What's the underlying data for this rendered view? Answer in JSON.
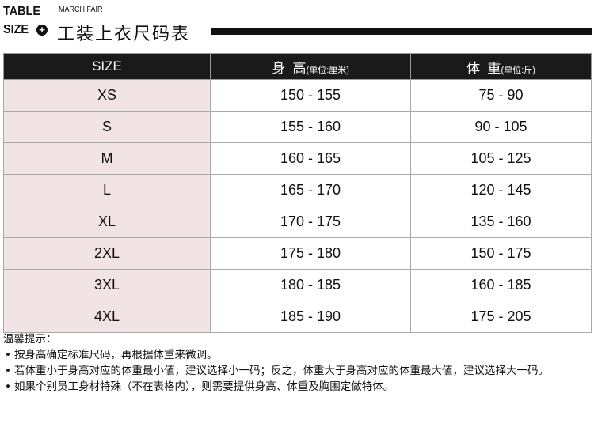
{
  "header": {
    "line1": "TABLE",
    "line2": "SIZE",
    "subtitle": "MARCH FAIR",
    "title": "工装上衣尺码表",
    "icon": "plus-circle-icon"
  },
  "table": {
    "columns": [
      {
        "label": "SIZE",
        "unit": ""
      },
      {
        "label": "身  高",
        "unit": "(单位:厘米)"
      },
      {
        "label": "体  重",
        "unit": "(单位:斤)"
      }
    ],
    "rows": [
      [
        "XS",
        "150 - 155",
        "75 - 90"
      ],
      [
        "S",
        "155 - 160",
        "90 - 105"
      ],
      [
        "M",
        "160 - 165",
        "105 - 125"
      ],
      [
        "L",
        "165 - 170",
        "120 - 145"
      ],
      [
        "XL",
        "170 - 175",
        "135 - 160"
      ],
      [
        "2XL",
        "175 - 180",
        "150 - 175"
      ],
      [
        "3XL",
        "180 - 185",
        "160 - 185"
      ],
      [
        "4XL",
        "185 - 190",
        "175 - 205"
      ]
    ],
    "colors": {
      "header_bg": "#1a1a1a",
      "size_col_bg": "#f2e4e4"
    }
  },
  "notes": {
    "title": "温馨提示：",
    "items": [
      "按身高确定标准尺码，再根据体重来微调。",
      "若体重小于身高对应的体重最小値，建议选择小一码；反之，体重大于身高对应的体重最大値，建议选择大一码。",
      "如果个别员工身材特殊（不在表格内），则需要提供身高、体重及胸围定做特体。"
    ]
  }
}
